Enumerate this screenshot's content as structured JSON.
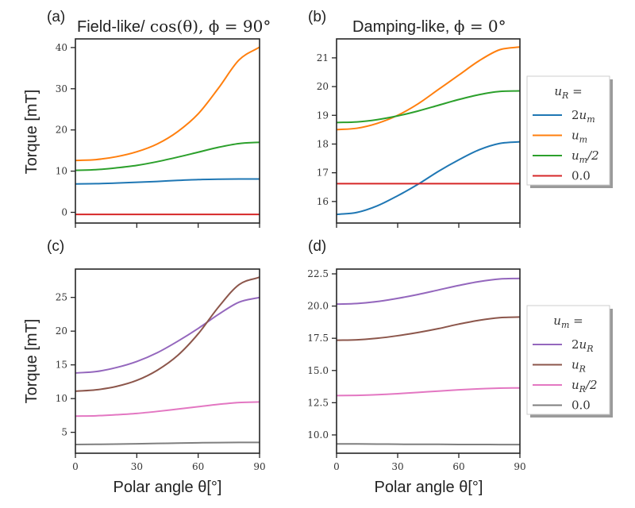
{
  "figure": {
    "panels": [
      {
        "letter": "(a)",
        "title_text": "Field-like/",
        "title_math": " cos(θ), ϕ = 90°"
      },
      {
        "letter": "(b)",
        "title_text": "Damping-like, ",
        "title_math": "ϕ = 0°"
      },
      {
        "letter": "(c)",
        "title_text": "",
        "title_math": ""
      },
      {
        "letter": "(d)",
        "title_text": "",
        "title_math": ""
      }
    ],
    "ylabel": "Torque [mT]",
    "xlabel": "Polar angle θ[°]",
    "legend_top": {
      "title": "u_R =",
      "title_main": "u",
      "title_sub": "R",
      "title_suffix": " =",
      "entries": [
        {
          "main": "2u",
          "sub": "m",
          "suffix": "",
          "color": "#1f77b4"
        },
        {
          "main": "u",
          "sub": "m",
          "suffix": "",
          "color": "#ff7f0e"
        },
        {
          "main": "u",
          "sub": "m",
          "suffix": "/2",
          "color": "#2ca02c"
        },
        {
          "main": "0.0",
          "sub": "",
          "suffix": "",
          "color": "#d62728"
        }
      ]
    },
    "legend_bottom": {
      "title": "u_m =",
      "title_main": "u",
      "title_sub": "m",
      "title_suffix": " =",
      "entries": [
        {
          "main": "2u",
          "sub": "R",
          "suffix": "",
          "color": "#9467bd"
        },
        {
          "main": "u",
          "sub": "R",
          "suffix": "",
          "color": "#8c564b"
        },
        {
          "main": "u",
          "sub": "R",
          "suffix": "/2",
          "color": "#e377c2"
        },
        {
          "main": "0.0",
          "sub": "",
          "suffix": "",
          "color": "#7f7f7f"
        }
      ]
    }
  },
  "chart_data": [
    {
      "id": "a",
      "type": "line",
      "title": "Field-like/cos(θ), ϕ = 90°",
      "xlabel": "",
      "ylabel": "Torque [mT]",
      "xlim": [
        0,
        90
      ],
      "ylim": [
        -2.6,
        42.1
      ],
      "xticks": [
        0,
        30,
        60,
        90
      ],
      "xtick_labels_visible": false,
      "yticks": [
        0,
        10,
        20,
        30,
        40
      ],
      "ytick_labels": [
        "0",
        "10",
        "20",
        "30",
        "40"
      ],
      "grid": false,
      "legend": "outside-right",
      "x": [
        0,
        10,
        20,
        30,
        40,
        50,
        60,
        70,
        80,
        90
      ],
      "series": [
        {
          "name": "2u_m",
          "color": "#1f77b4",
          "values": [
            6.9,
            6.95,
            7.1,
            7.3,
            7.5,
            7.75,
            7.95,
            8.05,
            8.1,
            8.1
          ]
        },
        {
          "name": "u_m",
          "color": "#ff7f0e",
          "values": [
            12.6,
            12.8,
            13.5,
            14.7,
            16.6,
            19.6,
            23.9,
            30.2,
            37.0,
            40.1
          ]
        },
        {
          "name": "u_m/2",
          "color": "#2ca02c",
          "values": [
            10.2,
            10.35,
            10.8,
            11.4,
            12.3,
            13.4,
            14.6,
            15.8,
            16.7,
            17.0
          ]
        },
        {
          "name": "0.0",
          "color": "#d62728",
          "values": [
            -0.5,
            -0.5,
            -0.5,
            -0.5,
            -0.5,
            -0.5,
            -0.5,
            -0.5,
            -0.5,
            -0.5
          ]
        }
      ]
    },
    {
      "id": "b",
      "type": "line",
      "title": "Damping-like, ϕ = 0°",
      "xlabel": "",
      "ylabel": "",
      "xlim": [
        0,
        90
      ],
      "ylim": [
        15.25,
        21.66
      ],
      "xticks": [
        0,
        30,
        60,
        90
      ],
      "xtick_labels_visible": false,
      "yticks": [
        16,
        17,
        18,
        19,
        20,
        21
      ],
      "ytick_labels": [
        "16",
        "17",
        "18",
        "19",
        "20",
        "21"
      ],
      "grid": false,
      "legend": "outside-right",
      "x": [
        0,
        10,
        20,
        30,
        40,
        50,
        60,
        70,
        80,
        90
      ],
      "series": [
        {
          "name": "2u_m",
          "color": "#1f77b4",
          "values": [
            15.55,
            15.62,
            15.85,
            16.2,
            16.6,
            17.05,
            17.45,
            17.8,
            18.02,
            18.08
          ]
        },
        {
          "name": "u_m",
          "color": "#ff7f0e",
          "values": [
            18.5,
            18.55,
            18.72,
            19.0,
            19.4,
            19.9,
            20.4,
            20.9,
            21.28,
            21.38
          ]
        },
        {
          "name": "u_m/2",
          "color": "#2ca02c",
          "values": [
            18.75,
            18.77,
            18.85,
            18.98,
            19.15,
            19.35,
            19.55,
            19.72,
            19.83,
            19.85
          ]
        },
        {
          "name": "0.0",
          "color": "#d62728",
          "values": [
            16.62,
            16.62,
            16.62,
            16.62,
            16.62,
            16.62,
            16.62,
            16.62,
            16.62,
            16.62
          ]
        }
      ]
    },
    {
      "id": "c",
      "type": "line",
      "title": "",
      "xlabel": "Polar angle θ[°]",
      "ylabel": "Torque [mT]",
      "xlim": [
        0,
        90
      ],
      "ylim": [
        1.9,
        29.2
      ],
      "xticks": [
        0,
        30,
        60,
        90
      ],
      "xtick_labels": [
        "0",
        "30",
        "60",
        "90"
      ],
      "yticks": [
        5,
        10,
        15,
        20,
        25
      ],
      "ytick_labels": [
        "5",
        "10",
        "15",
        "20",
        "25"
      ],
      "grid": false,
      "legend": "outside-right",
      "x": [
        0,
        10,
        20,
        30,
        40,
        50,
        60,
        70,
        80,
        90
      ],
      "series": [
        {
          "name": "2u_R",
          "color": "#9467bd",
          "values": [
            13.8,
            14.0,
            14.6,
            15.5,
            16.8,
            18.5,
            20.4,
            22.5,
            24.3,
            25.0
          ]
        },
        {
          "name": "u_R",
          "color": "#8c564b",
          "values": [
            11.1,
            11.3,
            11.8,
            12.7,
            14.2,
            16.4,
            19.6,
            23.6,
            26.9,
            28.0
          ]
        },
        {
          "name": "u_R/2",
          "color": "#e377c2",
          "values": [
            7.4,
            7.45,
            7.6,
            7.8,
            8.1,
            8.45,
            8.8,
            9.15,
            9.42,
            9.5
          ]
        },
        {
          "name": "0.0",
          "color": "#7f7f7f",
          "values": [
            3.2,
            3.22,
            3.25,
            3.3,
            3.35,
            3.4,
            3.45,
            3.48,
            3.5,
            3.5
          ]
        }
      ]
    },
    {
      "id": "d",
      "type": "line",
      "title": "",
      "xlabel": "Polar angle θ[°]",
      "ylabel": "",
      "xlim": [
        0,
        90
      ],
      "ylim": [
        8.58,
        22.87
      ],
      "xticks": [
        0,
        30,
        60,
        90
      ],
      "xtick_labels": [
        "0",
        "30",
        "60",
        "90"
      ],
      "yticks": [
        10.0,
        12.5,
        15.0,
        17.5,
        20.0,
        22.5
      ],
      "ytick_labels": [
        "10.0",
        "12.5",
        "15.0",
        "17.5",
        "20.0",
        "22.5"
      ],
      "grid": false,
      "legend": "outside-right",
      "x": [
        0,
        10,
        20,
        30,
        40,
        50,
        60,
        70,
        80,
        90
      ],
      "series": [
        {
          "name": "2u_R",
          "color": "#9467bd",
          "values": [
            20.15,
            20.2,
            20.35,
            20.6,
            20.9,
            21.25,
            21.6,
            21.9,
            22.1,
            22.15
          ]
        },
        {
          "name": "u_R",
          "color": "#8c564b",
          "values": [
            17.35,
            17.38,
            17.5,
            17.7,
            17.95,
            18.25,
            18.6,
            18.9,
            19.1,
            19.15
          ]
        },
        {
          "name": "u_R/2",
          "color": "#e377c2",
          "values": [
            13.05,
            13.07,
            13.12,
            13.2,
            13.3,
            13.4,
            13.5,
            13.58,
            13.63,
            13.65
          ]
        },
        {
          "name": "0.0",
          "color": "#7f7f7f",
          "values": [
            9.3,
            9.3,
            9.29,
            9.28,
            9.27,
            9.27,
            9.26,
            9.26,
            9.25,
            9.25
          ]
        }
      ]
    }
  ]
}
